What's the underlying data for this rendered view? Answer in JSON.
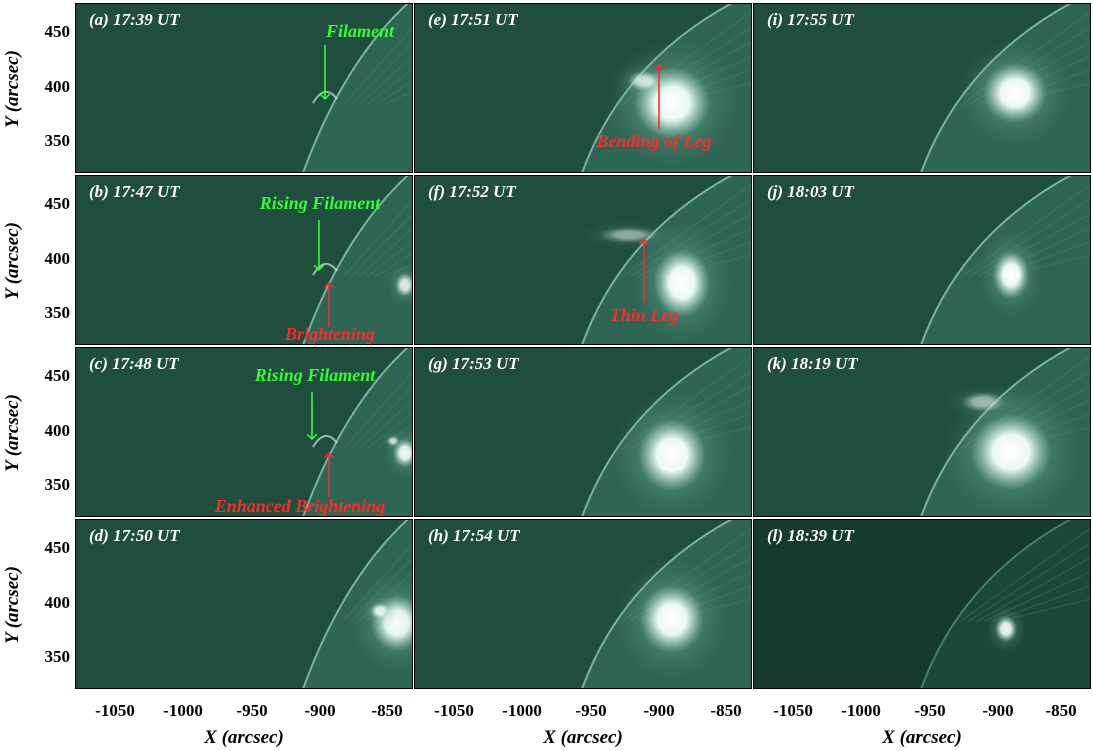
{
  "figure": {
    "y_axis_label": "Y (arcsec)",
    "x_axis_label": "X (arcsec)",
    "y_ticks": [
      "450",
      "400",
      "350"
    ],
    "x_ticks": [
      "-1050",
      "-1000",
      "-950",
      "-900",
      "-850"
    ],
    "background_color": "#1f4d3e",
    "bright_color": "#ffffff",
    "green_annotation_color": "#33ff33",
    "red_annotation_color": "#ff2a2a",
    "panels": [
      {
        "id": "a",
        "title": "(a) 17:39 UT",
        "annotations": [
          {
            "text": "Filament",
            "color": "green"
          }
        ]
      },
      {
        "id": "b",
        "title": "(b) 17:47 UT",
        "annotations": [
          {
            "text": "Rising Filament",
            "color": "green"
          },
          {
            "text": "Brightening",
            "color": "red"
          }
        ]
      },
      {
        "id": "c",
        "title": "(c) 17:48 UT",
        "annotations": [
          {
            "text": "Rising Filament",
            "color": "green"
          },
          {
            "text": "Enhanced Brightening",
            "color": "red"
          }
        ]
      },
      {
        "id": "d",
        "title": "(d) 17:50 UT",
        "annotations": []
      },
      {
        "id": "e",
        "title": "(e) 17:51 UT",
        "annotations": [
          {
            "text": "Bending of Leg",
            "color": "red"
          }
        ]
      },
      {
        "id": "f",
        "title": "(f) 17:52 UT",
        "annotations": [
          {
            "text": "Thin Leg",
            "color": "red"
          }
        ]
      },
      {
        "id": "g",
        "title": "(g) 17:53 UT",
        "annotations": []
      },
      {
        "id": "h",
        "title": "(h) 17:54 UT",
        "annotations": []
      },
      {
        "id": "i",
        "title": "(i) 17:55 UT",
        "annotations": []
      },
      {
        "id": "j",
        "title": "(j) 18:03 UT",
        "annotations": []
      },
      {
        "id": "k",
        "title": "(k) 18:19 UT",
        "annotations": []
      },
      {
        "id": "l",
        "title": "(l) 18:39 UT",
        "annotations": []
      }
    ]
  }
}
